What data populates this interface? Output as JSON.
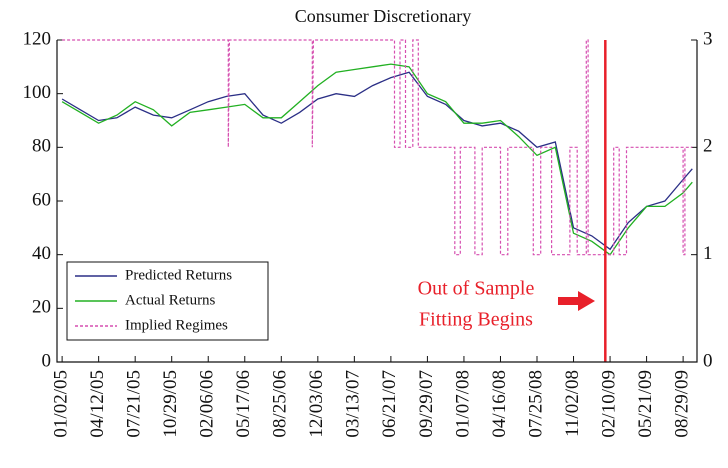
{
  "chart_data": {
    "type": "line",
    "title": "Consumer Discretionary",
    "xlim": [
      -14,
      1738
    ],
    "xticks": [
      {
        "value": 0,
        "label": "01/02/05"
      },
      {
        "value": 100,
        "label": "04/12/05"
      },
      {
        "value": 200,
        "label": "07/21/05"
      },
      {
        "value": 300,
        "label": "10/29/05"
      },
      {
        "value": 400,
        "label": "02/06/06"
      },
      {
        "value": 500,
        "label": "05/17/06"
      },
      {
        "value": 600,
        "label": "08/25/06"
      },
      {
        "value": 700,
        "label": "12/03/06"
      },
      {
        "value": 800,
        "label": "03/13/07"
      },
      {
        "value": 900,
        "label": "06/21/07"
      },
      {
        "value": 1000,
        "label": "09/29/07"
      },
      {
        "value": 1100,
        "label": "01/07/08"
      },
      {
        "value": 1200,
        "label": "04/16/08"
      },
      {
        "value": 1300,
        "label": "07/25/08"
      },
      {
        "value": 1400,
        "label": "11/02/08"
      },
      {
        "value": 1500,
        "label": "02/10/09"
      },
      {
        "value": 1600,
        "label": "05/21/09"
      },
      {
        "value": 1700,
        "label": "08/29/09"
      }
    ],
    "ylim": [
      0,
      120
    ],
    "yticks": [
      0,
      20,
      40,
      60,
      80,
      100,
      120
    ],
    "y2lim": [
      0,
      3
    ],
    "y2ticks": [
      0,
      1,
      2,
      3
    ],
    "legend": "lower left",
    "series": [
      {
        "name": "Predicted Returns",
        "color": "#2b2f86",
        "x": [
          0,
          50,
          100,
          150,
          200,
          250,
          300,
          350,
          400,
          450,
          500,
          550,
          600,
          650,
          700,
          750,
          800,
          850,
          900,
          950,
          1000,
          1050,
          1100,
          1150,
          1200,
          1250,
          1300,
          1350,
          1400,
          1450,
          1500,
          1550,
          1600,
          1650,
          1700,
          1725
        ],
        "values": [
          98,
          94,
          90,
          91,
          95,
          92,
          91,
          94,
          97,
          99,
          100,
          92,
          89,
          93,
          98,
          100,
          99,
          103,
          106,
          108,
          99,
          96,
          90,
          88,
          89,
          86,
          80,
          82,
          50,
          47,
          42,
          52,
          58,
          60,
          68,
          72
        ]
      },
      {
        "name": "Actual Returns",
        "color": "#22b022",
        "x": [
          0,
          50,
          100,
          150,
          200,
          250,
          300,
          350,
          400,
          450,
          500,
          550,
          600,
          650,
          700,
          750,
          800,
          850,
          900,
          950,
          1000,
          1050,
          1100,
          1150,
          1200,
          1250,
          1300,
          1350,
          1400,
          1450,
          1500,
          1550,
          1600,
          1650,
          1700,
          1725
        ],
        "values": [
          97,
          93,
          89,
          92,
          97,
          94,
          88,
          93,
          94,
          95,
          96,
          91,
          91,
          97,
          103,
          108,
          109,
          110,
          111,
          110,
          100,
          97,
          89,
          89,
          90,
          84,
          77,
          80,
          48,
          45,
          40,
          50,
          58,
          58,
          63,
          67
        ]
      },
      {
        "name": "Implied Regimes",
        "color": "#d64fb0",
        "axis": "y2",
        "dashed": true,
        "x": [
          0,
          455,
          455,
          458,
          685,
          685,
          688,
          910,
          910,
          925,
          925,
          940,
          940,
          960,
          960,
          975,
          975,
          1075,
          1075,
          1090,
          1090,
          1130,
          1130,
          1150,
          1150,
          1200,
          1200,
          1220,
          1220,
          1290,
          1290,
          1310,
          1310,
          1340,
          1340,
          1390,
          1390,
          1410,
          1410,
          1435,
          1435,
          1440,
          1440,
          1510,
          1510,
          1525,
          1525,
          1545,
          1545,
          1700,
          1700,
          1705,
          1705,
          1725
        ],
        "values": [
          3,
          3,
          2,
          3,
          3,
          2,
          3,
          3,
          2,
          2,
          3,
          3,
          2,
          2,
          3,
          3,
          2,
          2,
          1,
          1,
          2,
          2,
          1,
          1,
          2,
          2,
          1,
          1,
          2,
          2,
          1,
          1,
          2,
          2,
          1,
          1,
          2,
          2,
          1,
          1,
          3,
          3,
          1,
          1,
          2,
          2,
          1,
          1,
          2,
          2,
          1,
          1,
          2,
          2
        ]
      }
    ],
    "vline": {
      "x": 1487,
      "color": "#e8202a"
    },
    "annotation": {
      "text": [
        "Out of Sample",
        "Fitting Begins"
      ]
    }
  }
}
